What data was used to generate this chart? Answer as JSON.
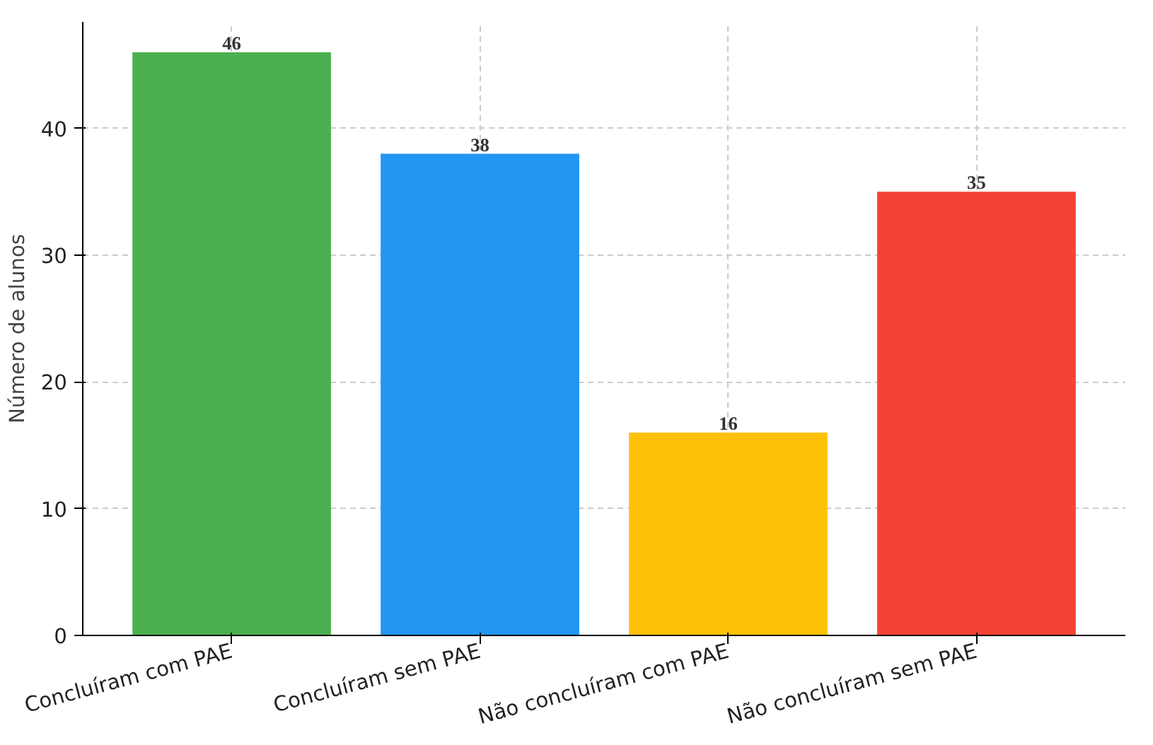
{
  "chart_data": {
    "type": "bar",
    "ylabel": "Número de alunos",
    "categories": [
      "Concluíram com PAE",
      "Concluíram sem PAE",
      "Não concluíram com PAE",
      "Não concluíram sem PAE"
    ],
    "values": [
      46,
      38,
      16,
      35
    ],
    "colors": [
      "#4caf50",
      "#2196f3",
      "#ffc107",
      "#f44336"
    ],
    "ylim": [
      0,
      48.4
    ],
    "yticks": [
      0,
      10,
      20,
      30,
      40
    ],
    "grid": true,
    "data_labels": true
  }
}
